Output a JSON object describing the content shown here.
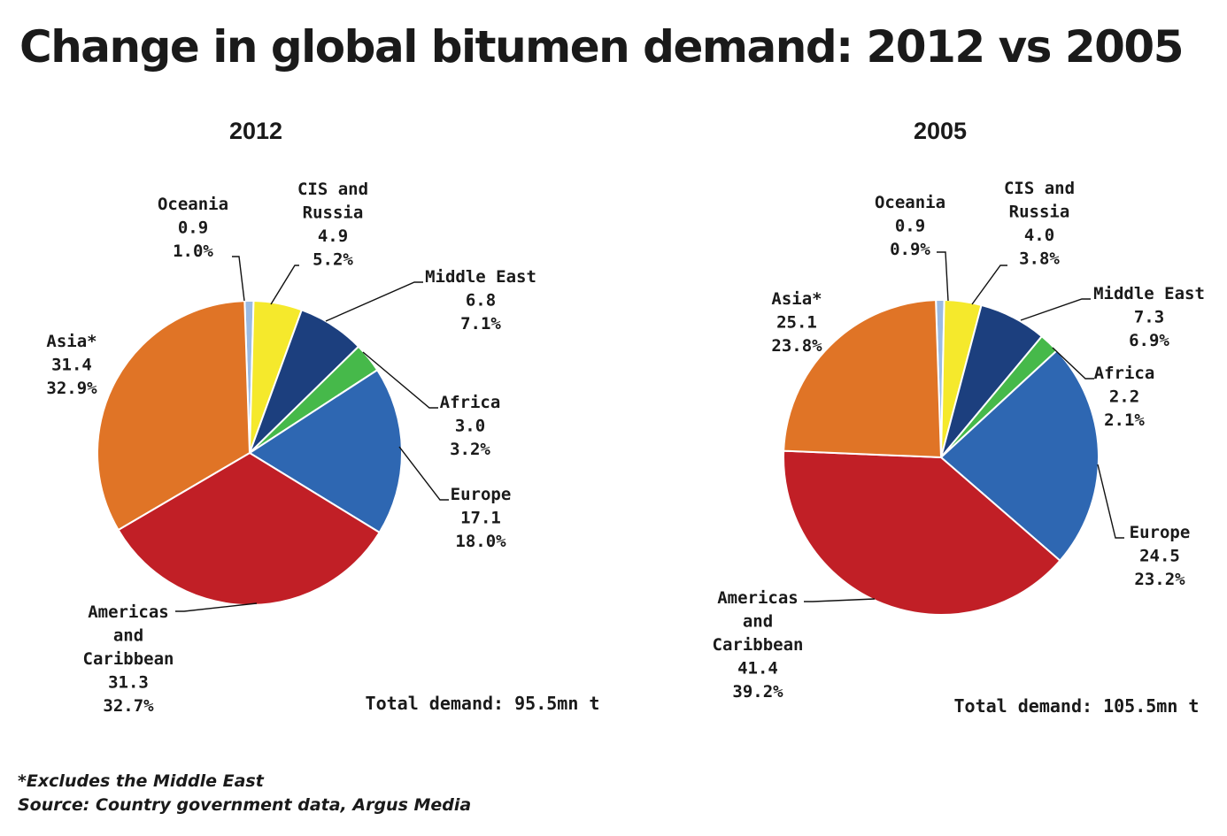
{
  "title": "Change in global bitumen demand: 2012 vs 2005",
  "footnotes": {
    "note": "*Excludes the Middle East",
    "source": "Source: Country government data, Argus Media"
  },
  "colors": {
    "Oceania": "#9bbbe3",
    "CIS and Russia": "#f5e92c",
    "Middle East": "#1c3f7e",
    "Africa": "#46b94a",
    "Europe": "#2e67b2",
    "Americas and Caribbean": "#c11f26",
    "Asia*": "#e07426"
  },
  "chart_data": [
    {
      "type": "pie",
      "title": "2012",
      "total_label": "Total demand: 95.5mn t",
      "slices": [
        {
          "name": "Oceania",
          "label_lines": [
            "Oceania"
          ],
          "value": 0.9,
          "value_label": "0.9",
          "percent_label": "1.0%"
        },
        {
          "name": "CIS and Russia",
          "label_lines": [
            "CIS and",
            "Russia"
          ],
          "value": 4.9,
          "value_label": "4.9",
          "percent_label": "5.2%"
        },
        {
          "name": "Middle East",
          "label_lines": [
            "Middle East"
          ],
          "value": 6.8,
          "value_label": "6.8",
          "percent_label": "7.1%"
        },
        {
          "name": "Africa",
          "label_lines": [
            "Africa"
          ],
          "value": 3.0,
          "value_label": "3.0",
          "percent_label": "3.2%"
        },
        {
          "name": "Europe",
          "label_lines": [
            "Europe"
          ],
          "value": 17.1,
          "value_label": "17.1",
          "percent_label": "18.0%"
        },
        {
          "name": "Americas and Caribbean",
          "label_lines": [
            "Americas",
            "and",
            "Caribbean"
          ],
          "value": 31.3,
          "value_label": "31.3",
          "percent_label": "32.7%"
        },
        {
          "name": "Asia*",
          "label_lines": [
            "Asia*"
          ],
          "value": 31.4,
          "value_label": "31.4",
          "percent_label": "32.9%"
        }
      ]
    },
    {
      "type": "pie",
      "title": "2005",
      "total_label": "Total demand: 105.5mn t",
      "slices": [
        {
          "name": "Oceania",
          "label_lines": [
            "Oceania"
          ],
          "value": 0.9,
          "value_label": "0.9",
          "percent_label": "0.9%"
        },
        {
          "name": "CIS and Russia",
          "label_lines": [
            "CIS and",
            "Russia"
          ],
          "value": 4.0,
          "value_label": "4.0",
          "percent_label": "3.8%"
        },
        {
          "name": "Middle East",
          "label_lines": [
            "Middle East"
          ],
          "value": 7.3,
          "value_label": "7.3",
          "percent_label": "6.9%"
        },
        {
          "name": "Africa",
          "label_lines": [
            "Africa"
          ],
          "value": 2.2,
          "value_label": "2.2",
          "percent_label": "2.1%"
        },
        {
          "name": "Europe",
          "label_lines": [
            "Europe"
          ],
          "value": 24.5,
          "value_label": "24.5",
          "percent_label": "23.2%"
        },
        {
          "name": "Americas and Caribbean",
          "label_lines": [
            "Americas",
            "and",
            "Caribbean"
          ],
          "value": 41.4,
          "value_label": "41.4",
          "percent_label": "39.2%"
        },
        {
          "name": "Asia*",
          "label_lines": [
            "Asia*"
          ],
          "value": 25.1,
          "value_label": "25.1",
          "percent_label": "23.8%"
        }
      ]
    }
  ]
}
